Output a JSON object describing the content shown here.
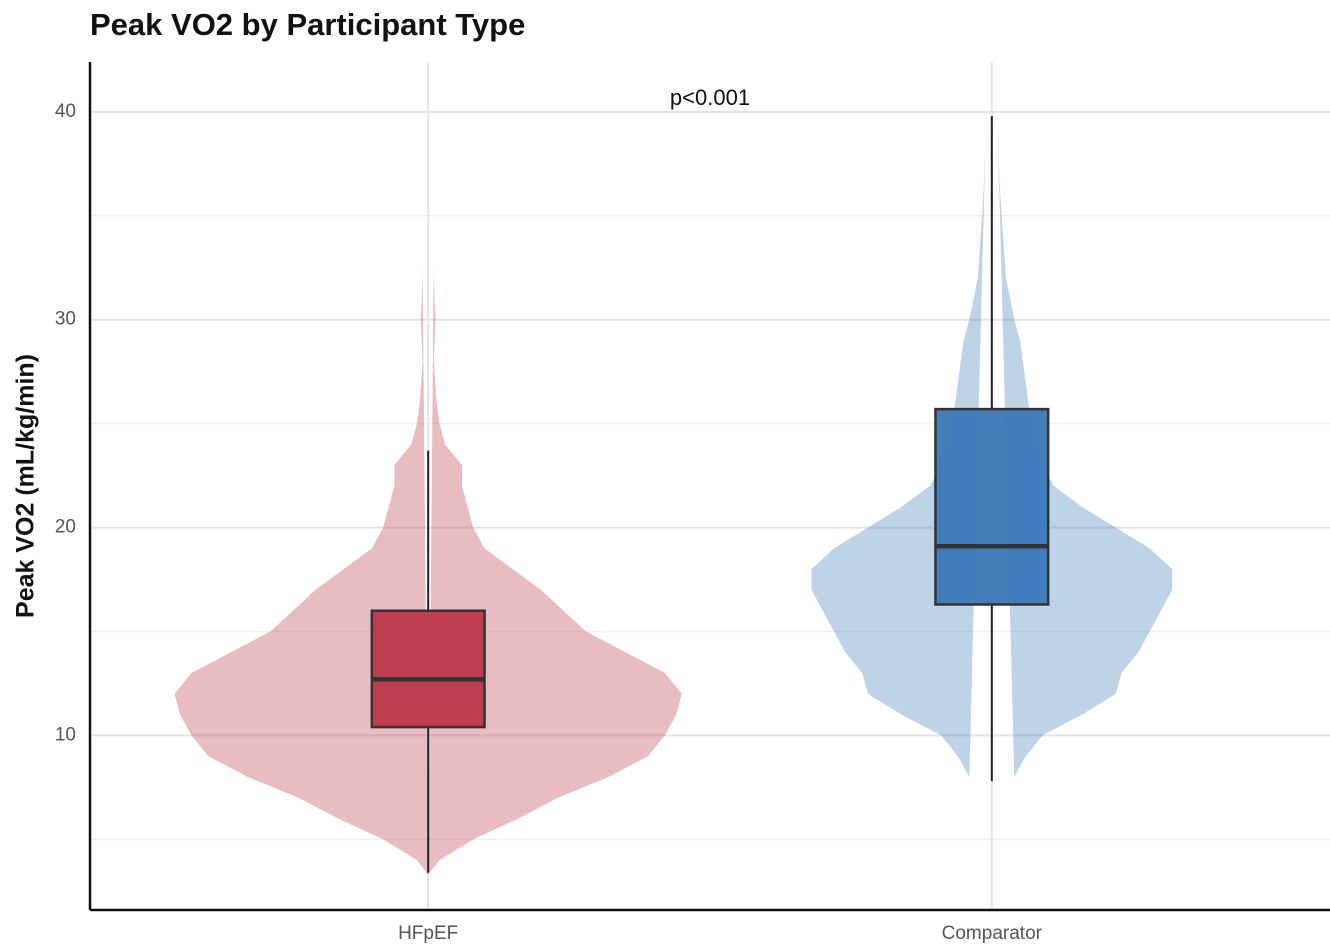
{
  "chart_data": {
    "type": "violin",
    "title": "Peak VO2 by Participant Type",
    "ylabel": "Peak VO2 (mL/kg/min)",
    "categories": [
      "HFpEF",
      "Comparator"
    ],
    "annotation": {
      "text": "p<0.001",
      "x": 1.5,
      "y": 40.6
    },
    "ylim": [
      1.6,
      42.4
    ],
    "yticks": [
      10,
      20,
      30,
      40
    ],
    "minor_yticks": [
      5,
      15,
      25,
      35
    ],
    "grid": true,
    "box_width": 0.2,
    "groups": [
      {
        "color": "#bc3547",
        "box": {
          "whisker_low": 3.4,
          "q1": 10.4,
          "median": 12.7,
          "q3": 16.0,
          "whisker_high": 23.7
        },
        "density": {
          "y": [
            3.3,
            4,
            5,
            6,
            7,
            8,
            9,
            10,
            11,
            12,
            13,
            14,
            15,
            16,
            17,
            18,
            19,
            20,
            21,
            22,
            23,
            24,
            25,
            26,
            28,
            30,
            32,
            32.9
          ],
          "half_width": [
            0,
            0.02,
            0.08,
            0.16,
            0.23,
            0.32,
            0.39,
            0.42,
            0.44,
            0.45,
            0.42,
            0.35,
            0.28,
            0.24,
            0.2,
            0.15,
            0.1,
            0.08,
            0.07,
            0.06,
            0.06,
            0.03,
            0.02,
            0.015,
            0.01,
            0.013,
            0.01,
            0.01
          ]
        }
      },
      {
        "color": "#3a78b8",
        "box": {
          "whisker_low": 7.8,
          "q1": 16.3,
          "median": 19.1,
          "q3": 25.7,
          "whisker_high": 39.8
        },
        "density": {
          "y": [
            7.8,
            8,
            9,
            10,
            11,
            12,
            13,
            14,
            15,
            16,
            17,
            18,
            19,
            20,
            21,
            22,
            23,
            24,
            25,
            26,
            27,
            28,
            29,
            30,
            32,
            34,
            36,
            38,
            39.8
          ],
          "half_width": [
            0.04,
            0.04,
            0.06,
            0.09,
            0.16,
            0.22,
            0.23,
            0.26,
            0.28,
            0.3,
            0.32,
            0.32,
            0.28,
            0.22,
            0.16,
            0.11,
            0.09,
            0.075,
            0.07,
            0.065,
            0.06,
            0.055,
            0.05,
            0.04,
            0.025,
            0.02,
            0.015,
            0.012,
            0.01
          ]
        }
      }
    ]
  }
}
